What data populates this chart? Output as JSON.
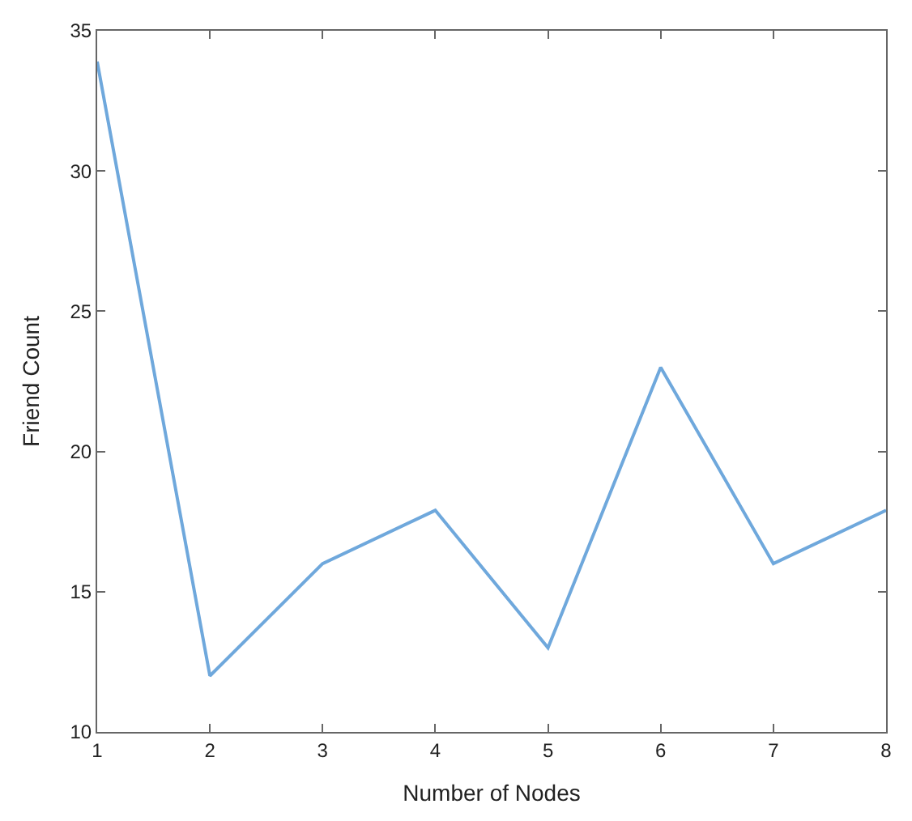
{
  "chart_data": {
    "type": "line",
    "xlabel": "Number of Nodes",
    "ylabel": "Friend Count",
    "x": [
      1,
      2,
      3,
      4,
      5,
      6,
      7,
      8
    ],
    "series": [
      {
        "color": "#6fa8dc",
        "values": [
          33.9,
          12.0,
          16.0,
          17.9,
          13.0,
          23.0,
          16.0,
          17.9
        ]
      }
    ],
    "xlim": [
      1,
      8
    ],
    "xticks": [
      1,
      2,
      3,
      4,
      5,
      6,
      7,
      8
    ],
    "ylim": [
      10,
      35
    ],
    "yticks": [
      10,
      15,
      20,
      25,
      30,
      35
    ],
    "legend": false,
    "marker": "none",
    "line_style": "solid"
  }
}
